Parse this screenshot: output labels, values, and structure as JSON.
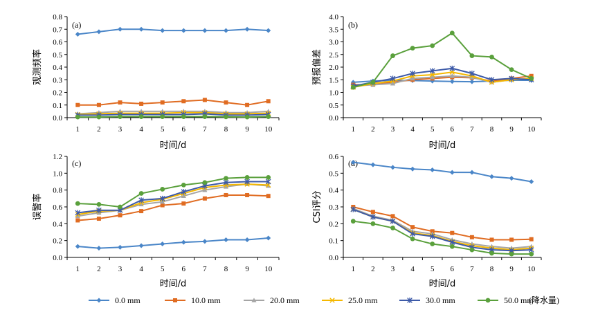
{
  "series_styles": [
    {
      "name": "0.0 mm",
      "color": "#4a86c8",
      "marker": "diamond"
    },
    {
      "name": "10.0 mm",
      "color": "#e06c22",
      "marker": "square"
    },
    {
      "name": "20.0 mm",
      "color": "#a5a5a5",
      "marker": "triangle"
    },
    {
      "name": "25.0 mm",
      "color": "#f5b800",
      "marker": "x"
    },
    {
      "name": "30.0 mm",
      "color": "#3d5aa8",
      "marker": "star"
    },
    {
      "name": "50.0 mm",
      "color": "#5aa03c",
      "marker": "circle"
    }
  ],
  "legend_suffix": "(降水量)",
  "chart_data": [
    {
      "type": "line",
      "panel_label": "(a)",
      "xlabel": "时间/d",
      "ylabel": "观测频率",
      "x": [
        1,
        2,
        3,
        4,
        5,
        6,
        7,
        8,
        9,
        10
      ],
      "ylim": [
        0,
        0.8
      ],
      "yticks": [
        "0.0",
        "0.1",
        "0.2",
        "0.3",
        "0.4",
        "0.5",
        "0.6",
        "0.7",
        "0.8"
      ],
      "series": [
        {
          "name": "0.0 mm",
          "values": [
            0.66,
            0.68,
            0.7,
            0.7,
            0.69,
            0.69,
            0.69,
            0.69,
            0.7,
            0.69
          ]
        },
        {
          "name": "10.0 mm",
          "values": [
            0.1,
            0.1,
            0.12,
            0.11,
            0.12,
            0.13,
            0.14,
            0.12,
            0.1,
            0.13
          ]
        },
        {
          "name": "20.0 mm",
          "values": [
            0.03,
            0.04,
            0.05,
            0.05,
            0.05,
            0.05,
            0.05,
            0.04,
            0.04,
            0.05
          ]
        },
        {
          "name": "25.0 mm",
          "values": [
            0.025,
            0.03,
            0.035,
            0.035,
            0.035,
            0.04,
            0.04,
            0.03,
            0.03,
            0.035
          ]
        },
        {
          "name": "30.0 mm",
          "values": [
            0.02,
            0.02,
            0.025,
            0.025,
            0.025,
            0.025,
            0.03,
            0.02,
            0.02,
            0.025
          ]
        },
        {
          "name": "50.0 mm",
          "values": [
            0.005,
            0.005,
            0.008,
            0.008,
            0.008,
            0.008,
            0.008,
            0.006,
            0.005,
            0.008
          ]
        }
      ]
    },
    {
      "type": "line",
      "panel_label": "(b)",
      "xlabel": "时间/d",
      "ylabel": "预报偏差",
      "x": [
        1,
        2,
        3,
        4,
        5,
        6,
        7,
        8,
        9,
        10
      ],
      "ylim": [
        0,
        4.0
      ],
      "yticks": [
        "0.0",
        "0.5",
        "1.0",
        "1.5",
        "2.0",
        "2.5",
        "3.0",
        "3.5",
        "4.0"
      ],
      "series": [
        {
          "name": "0.0 mm",
          "values": [
            1.4,
            1.45,
            1.48,
            1.47,
            1.45,
            1.43,
            1.42,
            1.45,
            1.48,
            1.48
          ]
        },
        {
          "name": "10.0 mm",
          "values": [
            1.3,
            1.3,
            1.4,
            1.5,
            1.55,
            1.6,
            1.58,
            1.45,
            1.55,
            1.65
          ]
        },
        {
          "name": "20.0 mm",
          "values": [
            1.25,
            1.3,
            1.35,
            1.55,
            1.6,
            1.65,
            1.6,
            1.4,
            1.5,
            1.55
          ]
        },
        {
          "name": "25.0 mm",
          "values": [
            1.2,
            1.35,
            1.45,
            1.65,
            1.7,
            1.8,
            1.65,
            1.4,
            1.5,
            1.55
          ]
        },
        {
          "name": "30.0 mm",
          "values": [
            1.25,
            1.4,
            1.55,
            1.75,
            1.85,
            1.95,
            1.75,
            1.5,
            1.55,
            1.5
          ]
        },
        {
          "name": "50.0 mm",
          "values": [
            1.2,
            1.4,
            2.45,
            2.75,
            2.85,
            3.35,
            2.45,
            2.4,
            1.9,
            1.55
          ]
        }
      ]
    },
    {
      "type": "line",
      "panel_label": "(c)",
      "xlabel": "时间/d",
      "ylabel": "误警率",
      "x": [
        1,
        2,
        3,
        4,
        5,
        6,
        7,
        8,
        9,
        10
      ],
      "ylim": [
        0,
        1.2
      ],
      "yticks": [
        "0.0",
        "0.2",
        "0.4",
        "0.6",
        "0.8",
        "1.0",
        "1.2"
      ],
      "series": [
        {
          "name": "0.0 mm",
          "values": [
            0.13,
            0.11,
            0.12,
            0.14,
            0.16,
            0.18,
            0.19,
            0.21,
            0.21,
            0.23
          ]
        },
        {
          "name": "10.0 mm",
          "values": [
            0.44,
            0.46,
            0.5,
            0.55,
            0.62,
            0.64,
            0.7,
            0.74,
            0.74,
            0.73
          ]
        },
        {
          "name": "20.0 mm",
          "values": [
            0.49,
            0.53,
            0.56,
            0.63,
            0.66,
            0.73,
            0.8,
            0.84,
            0.87,
            0.85
          ]
        },
        {
          "name": "25.0 mm",
          "values": [
            0.51,
            0.55,
            0.56,
            0.65,
            0.69,
            0.76,
            0.83,
            0.86,
            0.87,
            0.86
          ]
        },
        {
          "name": "30.0 mm",
          "values": [
            0.53,
            0.56,
            0.56,
            0.68,
            0.7,
            0.78,
            0.85,
            0.89,
            0.9,
            0.9
          ]
        },
        {
          "name": "50.0 mm",
          "values": [
            0.64,
            0.63,
            0.6,
            0.76,
            0.81,
            0.86,
            0.89,
            0.94,
            0.95,
            0.95
          ]
        }
      ]
    },
    {
      "type": "line",
      "panel_label": "(d)",
      "xlabel": "时间/d",
      "ylabel": "CSI评分",
      "x": [
        1,
        2,
        3,
        4,
        5,
        6,
        7,
        8,
        9,
        10
      ],
      "ylim": [
        0,
        0.6
      ],
      "yticks": [
        "0.0",
        "0.1",
        "0.2",
        "0.3",
        "0.4",
        "0.5",
        "0.6"
      ],
      "series": [
        {
          "name": "0.0 mm",
          "values": [
            0.565,
            0.55,
            0.535,
            0.525,
            0.52,
            0.505,
            0.505,
            0.48,
            0.47,
            0.45
          ]
        },
        {
          "name": "10.0 mm",
          "values": [
            0.3,
            0.27,
            0.245,
            0.18,
            0.155,
            0.145,
            0.12,
            0.105,
            0.105,
            0.108
          ]
        },
        {
          "name": "20.0 mm",
          "values": [
            0.29,
            0.245,
            0.22,
            0.155,
            0.14,
            0.105,
            0.08,
            0.065,
            0.055,
            0.065
          ]
        },
        {
          "name": "25.0 mm",
          "values": [
            0.285,
            0.24,
            0.215,
            0.145,
            0.13,
            0.095,
            0.07,
            0.055,
            0.045,
            0.055
          ]
        },
        {
          "name": "30.0 mm",
          "values": [
            0.285,
            0.24,
            0.215,
            0.14,
            0.125,
            0.09,
            0.06,
            0.045,
            0.04,
            0.045
          ]
        },
        {
          "name": "50.0 mm",
          "values": [
            0.215,
            0.2,
            0.175,
            0.11,
            0.08,
            0.065,
            0.045,
            0.025,
            0.02,
            0.02
          ]
        }
      ]
    }
  ]
}
